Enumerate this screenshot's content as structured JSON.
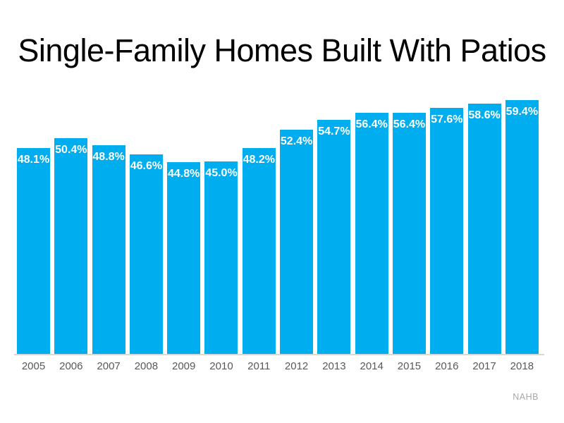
{
  "title": "Single-Family Homes Built With Patios",
  "source": "NAHB",
  "colors": {
    "background": "#FFFFFF",
    "title": "#000000",
    "bar": "#00AEEF",
    "value_label": "#FFFFFF",
    "year_label": "#595959",
    "axis_line": "#D8D8D8",
    "source_label": "#A8A8A8"
  },
  "chart_data": {
    "type": "bar",
    "title": "Single-Family Homes Built With Patios",
    "categories": [
      "2005",
      "2006",
      "2007",
      "2008",
      "2009",
      "2010",
      "2011",
      "2012",
      "2013",
      "2014",
      "2015",
      "2016",
      "2017",
      "2018"
    ],
    "values": [
      48.1,
      50.4,
      48.8,
      46.6,
      44.8,
      45.0,
      48.2,
      52.4,
      54.7,
      56.4,
      56.4,
      57.6,
      58.6,
      59.4
    ],
    "value_labels": [
      "48.1%",
      "50.4%",
      "48.8%",
      "46.6%",
      "44.8%",
      "45.0%",
      "48.2%",
      "52.4%",
      "54.7%",
      "56.4%",
      "56.4%",
      "57.6%",
      "58.6%",
      "59.4%"
    ],
    "xlabel": "",
    "ylabel": "",
    "ylim": [
      0,
      60
    ],
    "grid": false,
    "legend": null,
    "data_labels_position": "inside-top",
    "source": "NAHB"
  }
}
